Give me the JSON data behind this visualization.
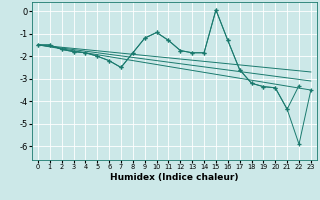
{
  "xlabel": "Humidex (Indice chaleur)",
  "bg_color": "#cce8e8",
  "grid_color": "#b8d8d8",
  "line_color": "#1a7a6e",
  "xlim": [
    -0.5,
    23.5
  ],
  "ylim": [
    -6.6,
    0.4
  ],
  "yticks": [
    0,
    -1,
    -2,
    -3,
    -4,
    -5,
    -6
  ],
  "xticks": [
    0,
    1,
    2,
    3,
    4,
    5,
    6,
    7,
    8,
    9,
    10,
    11,
    12,
    13,
    14,
    15,
    16,
    17,
    18,
    19,
    20,
    21,
    22,
    23
  ],
  "series1_x": [
    0,
    1,
    2,
    3,
    4,
    5,
    6,
    7,
    8,
    9,
    10,
    11,
    12,
    13,
    14,
    15,
    16,
    17,
    18,
    19,
    20,
    21,
    22
  ],
  "series1_y": [
    -1.5,
    -1.5,
    -1.7,
    -1.8,
    -1.85,
    -2.0,
    -2.2,
    -2.5,
    -1.85,
    -1.2,
    -0.95,
    -1.3,
    -1.75,
    -1.85,
    -1.85,
    0.05,
    -1.3,
    -2.6,
    -3.2,
    -3.35,
    -3.4,
    -4.35,
    -3.3
  ],
  "series2_x": [
    0,
    1,
    2,
    3,
    4,
    5,
    6,
    7,
    8,
    9,
    10,
    11,
    12,
    13,
    14,
    15,
    16,
    17,
    18,
    19,
    20,
    21,
    22,
    23
  ],
  "series2_y": [
    -1.5,
    -1.5,
    -1.7,
    -1.8,
    -1.85,
    -2.0,
    -2.2,
    -2.5,
    -1.85,
    -1.2,
    -0.95,
    -1.3,
    -1.75,
    -1.85,
    -1.85,
    0.05,
    -1.3,
    -2.6,
    -3.2,
    -3.35,
    -3.4,
    -4.35,
    -5.9,
    -3.5
  ],
  "line3": {
    "x": [
      0,
      23
    ],
    "y": [
      -1.5,
      -3.5
    ]
  },
  "line4": {
    "x": [
      0,
      23
    ],
    "y": [
      -1.5,
      -3.1
    ]
  },
  "line5": {
    "x": [
      0,
      23
    ],
    "y": [
      -1.5,
      -2.7
    ]
  }
}
